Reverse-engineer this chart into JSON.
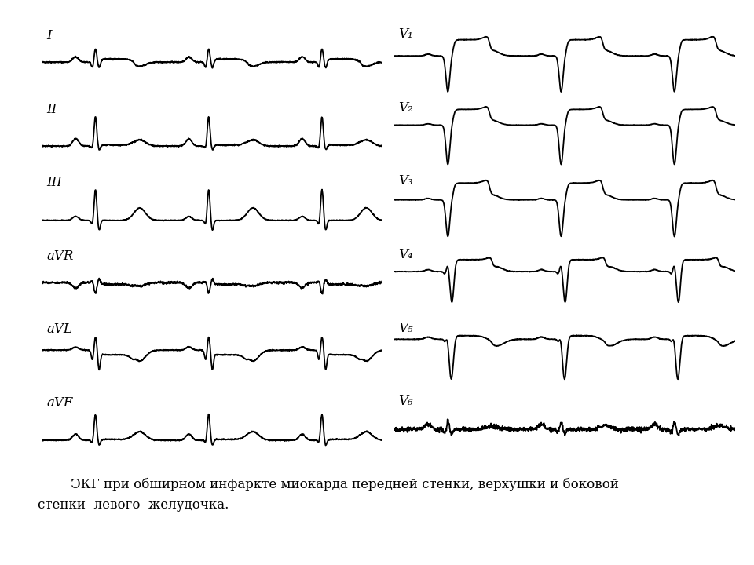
{
  "caption_line1": "        ЭКГ при обширном инфаркте миокарда передней стенки, верхушки и боковой",
  "caption_line2": "стенки  левого  желудочка.",
  "bg_color": "#ffffff",
  "line_color": "#000000",
  "lead_labels_left": [
    "I",
    "II",
    "III",
    "aVR",
    "aVL",
    "aVF"
  ],
  "lead_labels_right": [
    "V₁",
    "V₂",
    "V₃",
    "V₄",
    "V₅",
    "V₆"
  ],
  "caption_fontsize": 12,
  "label_fontsize": 12
}
